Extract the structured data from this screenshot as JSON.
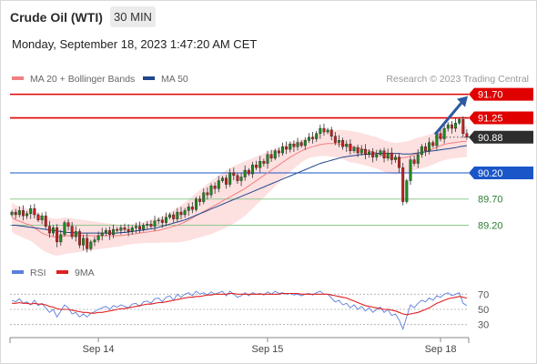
{
  "header": {
    "instrument": "Crude Oil (WTI)",
    "timeframe": "30 MIN",
    "datetime": "Monday, September 18, 2023 1:47:20 AM CET"
  },
  "source": "Research © 2023 Trading Central",
  "colors": {
    "bb_line": "#f08080",
    "bb_band": "#fde0e0",
    "ma50": "#23468c",
    "resistance": "#e00000",
    "pivot": "#1a56c8",
    "support": "#8fca8f",
    "candle_up": "#1e8a1e",
    "candle_down": "#c81e1e",
    "rsi": "#5b7fdc",
    "rsi_ma": "#e02020",
    "price_tag_dark": "#2e2e2e",
    "arrow": "#2c5aa0"
  },
  "chart_data": [
    {
      "type": "candlestick",
      "legend": [
        {
          "name": "MA 20 + Bollinger Bands",
          "color": "#f08080"
        },
        {
          "name": "MA 50",
          "color": "#23468c"
        }
      ],
      "x_ticks": [
        {
          "label": "Sep 14",
          "index": 23
        },
        {
          "label": "Sep 15",
          "index": 68
        },
        {
          "label": "Sep 18",
          "index": 114
        }
      ],
      "ylim": [
        88.6,
        91.85
      ],
      "levels": [
        {
          "label": "91.70",
          "value": 91.7,
          "kind": "resistance"
        },
        {
          "label": "91.25",
          "value": 91.25,
          "kind": "resistance"
        },
        {
          "label": "90.88",
          "value": 90.88,
          "kind": "last"
        },
        {
          "label": "90.20",
          "value": 90.2,
          "kind": "pivot"
        },
        {
          "label": "89.70",
          "value": 89.7,
          "kind": "support"
        },
        {
          "label": "89.20",
          "value": 89.2,
          "kind": "support"
        }
      ],
      "arrow": {
        "from_price": 90.9,
        "to_price": 91.7
      },
      "closes": [
        89.45,
        89.4,
        89.48,
        89.38,
        89.42,
        89.52,
        89.4,
        89.3,
        89.38,
        89.18,
        89.05,
        89.15,
        88.88,
        89.02,
        89.25,
        89.18,
        88.98,
        89.08,
        88.82,
        88.95,
        88.75,
        88.88,
        88.92,
        89.0,
        89.05,
        89.1,
        89.02,
        89.12,
        89.1,
        89.15,
        89.12,
        89.08,
        89.15,
        89.18,
        89.12,
        89.2,
        89.22,
        89.18,
        89.28,
        89.3,
        89.25,
        89.35,
        89.4,
        89.32,
        89.45,
        89.4,
        89.48,
        89.55,
        89.5,
        89.7,
        89.65,
        89.82,
        89.78,
        89.95,
        89.9,
        90.05,
        90.1,
        89.98,
        90.2,
        90.15,
        90.05,
        90.12,
        90.25,
        90.18,
        90.35,
        90.3,
        90.42,
        90.38,
        90.55,
        90.48,
        90.62,
        90.58,
        90.7,
        90.65,
        90.75,
        90.7,
        90.78,
        90.72,
        90.82,
        90.88,
        90.85,
        90.95,
        91.05,
        90.98,
        91.02,
        90.9,
        90.78,
        90.82,
        90.7,
        90.75,
        90.62,
        90.68,
        90.58,
        90.65,
        90.55,
        90.6,
        90.5,
        90.55,
        90.62,
        90.48,
        90.58,
        90.45,
        90.5,
        90.3,
        89.65,
        90.05,
        90.45,
        90.38,
        90.55,
        90.7,
        90.62,
        90.78,
        90.72,
        90.95,
        90.85,
        91.05,
        91.12,
        91.05,
        91.15,
        91.22,
        90.95,
        90.88
      ],
      "ma20": [
        89.35,
        89.3,
        89.28,
        89.25,
        89.22,
        89.2,
        89.15,
        89.1,
        89.05,
        89.02,
        89.0,
        88.98,
        88.97,
        88.98,
        89.0,
        89.0,
        89.0,
        89.0,
        89.0,
        89.0,
        89.0,
        89.0,
        89.0,
        89.0,
        89.0,
        89.0,
        89.0,
        89.0,
        89.0,
        89.0,
        89.01,
        89.02,
        89.03,
        89.04,
        89.05,
        89.06,
        89.07,
        89.08,
        89.09,
        89.1,
        89.12,
        89.14,
        89.16,
        89.18,
        89.2,
        89.23,
        89.26,
        89.3,
        89.34,
        89.38,
        89.42,
        89.46,
        89.5,
        89.54,
        89.58,
        89.62,
        89.66,
        89.7,
        89.74,
        89.78,
        89.82,
        89.86,
        89.9,
        89.95,
        90.0,
        90.05,
        90.1,
        90.15,
        90.2,
        90.25,
        90.3,
        90.35,
        90.4,
        90.45,
        90.5,
        90.54,
        90.58,
        90.62,
        90.65,
        90.68,
        90.7,
        90.72,
        90.74,
        90.75,
        90.76,
        90.76,
        90.76,
        90.75,
        90.74,
        90.72,
        90.7,
        90.69,
        90.68,
        90.66,
        90.64,
        90.62,
        90.6,
        90.58,
        90.55,
        90.52,
        90.5,
        90.48,
        90.47,
        90.48,
        90.49,
        90.5,
        90.52,
        90.55,
        90.57,
        90.59,
        90.61,
        90.63,
        90.66,
        90.69,
        90.72,
        90.74,
        90.76,
        90.77,
        90.78,
        90.79,
        90.8,
        90.8
      ],
      "bb_width": [
        0.28,
        0.28,
        0.28,
        0.29,
        0.29,
        0.3,
        0.3,
        0.31,
        0.32,
        0.33,
        0.34,
        0.35,
        0.35,
        0.35,
        0.35,
        0.34,
        0.33,
        0.32,
        0.31,
        0.3,
        0.29,
        0.28,
        0.27,
        0.26,
        0.25,
        0.24,
        0.23,
        0.22,
        0.21,
        0.2,
        0.19,
        0.19,
        0.19,
        0.19,
        0.2,
        0.2,
        0.21,
        0.22,
        0.23,
        0.24,
        0.25,
        0.27,
        0.29,
        0.31,
        0.33,
        0.35,
        0.37,
        0.39,
        0.41,
        0.43,
        0.45,
        0.47,
        0.49,
        0.51,
        0.52,
        0.53,
        0.54,
        0.55,
        0.55,
        0.55,
        0.54,
        0.53,
        0.52,
        0.5,
        0.48,
        0.46,
        0.44,
        0.42,
        0.4,
        0.38,
        0.36,
        0.34,
        0.32,
        0.3,
        0.28,
        0.26,
        0.24,
        0.22,
        0.2,
        0.2,
        0.2,
        0.21,
        0.22,
        0.23,
        0.24,
        0.25,
        0.26,
        0.27,
        0.28,
        0.29,
        0.3,
        0.3,
        0.3,
        0.3,
        0.3,
        0.3,
        0.3,
        0.3,
        0.3,
        0.3,
        0.3,
        0.3,
        0.3,
        0.3,
        0.3,
        0.3,
        0.3,
        0.3,
        0.3,
        0.3,
        0.3,
        0.3,
        0.3,
        0.3,
        0.3,
        0.3,
        0.3,
        0.3,
        0.3,
        0.3,
        0.3,
        0.3
      ],
      "ma50": [
        89.2,
        89.2,
        89.19,
        89.18,
        89.17,
        89.16,
        89.15,
        89.14,
        89.13,
        89.12,
        89.11,
        89.1,
        89.09,
        89.08,
        89.07,
        89.06,
        89.06,
        89.05,
        89.05,
        89.05,
        89.05,
        89.05,
        89.05,
        89.05,
        89.05,
        89.05,
        89.05,
        89.05,
        89.05,
        89.06,
        89.06,
        89.07,
        89.08,
        89.09,
        89.1,
        89.11,
        89.12,
        89.13,
        89.14,
        89.16,
        89.18,
        89.2,
        89.22,
        89.24,
        89.26,
        89.28,
        89.3,
        89.33,
        89.36,
        89.39,
        89.42,
        89.45,
        89.48,
        89.51,
        89.54,
        89.57,
        89.6,
        89.63,
        89.66,
        89.69,
        89.72,
        89.75,
        89.78,
        89.81,
        89.84,
        89.87,
        89.9,
        89.93,
        89.96,
        89.99,
        90.02,
        90.05,
        90.08,
        90.11,
        90.14,
        90.17,
        90.2,
        90.23,
        90.26,
        90.29,
        90.32,
        90.35,
        90.38,
        90.4,
        90.42,
        90.44,
        90.46,
        90.48,
        90.5,
        90.51,
        90.52,
        90.53,
        90.54,
        90.55,
        90.55,
        90.56,
        90.56,
        90.57,
        90.57,
        90.57,
        90.57,
        90.57,
        90.57,
        90.57,
        90.56,
        90.56,
        90.56,
        90.57,
        90.58,
        90.59,
        90.6,
        90.61,
        90.62,
        90.63,
        90.64,
        90.65,
        90.66,
        90.67,
        90.68,
        90.7,
        90.71,
        90.72
      ]
    },
    {
      "type": "line",
      "legend": [
        {
          "name": "RSI",
          "color": "#5b7fdc"
        },
        {
          "name": "9MA",
          "color": "#e02020"
        }
      ],
      "ylim": [
        20,
        80
      ],
      "y_ticks": [
        70,
        50,
        30
      ],
      "rsi": [
        62,
        60,
        64,
        58,
        60,
        56,
        62,
        55,
        58,
        52,
        46,
        50,
        40,
        48,
        56,
        52,
        44,
        46,
        40,
        44,
        40,
        45,
        47,
        50,
        52,
        54,
        50,
        55,
        53,
        56,
        54,
        52,
        57,
        58,
        54,
        60,
        61,
        58,
        64,
        65,
        60,
        66,
        68,
        62,
        70,
        66,
        70,
        72,
        68,
        74,
        70,
        72,
        69,
        73,
        70,
        72,
        74,
        68,
        74,
        70,
        66,
        68,
        72,
        68,
        72,
        70,
        71,
        69,
        73,
        70,
        74,
        71,
        72,
        70,
        71,
        69,
        70,
        68,
        70,
        71,
        69,
        72,
        74,
        70,
        70,
        65,
        60,
        62,
        56,
        58,
        52,
        56,
        50,
        54,
        48,
        52,
        46,
        50,
        53,
        46,
        50,
        42,
        44,
        36,
        24,
        40,
        56,
        52,
        58,
        62,
        60,
        65,
        62,
        68,
        66,
        70,
        72,
        68,
        70,
        72,
        58,
        55
      ],
      "ma9": [
        58,
        58,
        59,
        58,
        58,
        57,
        58,
        57,
        57,
        56,
        54,
        53,
        51,
        50,
        50,
        50,
        49,
        48,
        47,
        46,
        46,
        45,
        45,
        46,
        46,
        47,
        48,
        49,
        50,
        51,
        51,
        52,
        53,
        54,
        55,
        56,
        57,
        57,
        58,
        59,
        59,
        60,
        61,
        62,
        63,
        64,
        65,
        66,
        66,
        67,
        67,
        68,
        69,
        69,
        70,
        70,
        70,
        70,
        71,
        71,
        70,
        70,
        70,
        70,
        70,
        70,
        70,
        70,
        70,
        70,
        70,
        70,
        71,
        71,
        71,
        71,
        71,
        70,
        70,
        70,
        70,
        70,
        70,
        70,
        70,
        69,
        68,
        67,
        66,
        65,
        63,
        61,
        59,
        57,
        55,
        54,
        53,
        52,
        51,
        50,
        50,
        49,
        48,
        46,
        44,
        43,
        44,
        45,
        46,
        48,
        50,
        52,
        55,
        58,
        60,
        62,
        64,
        65,
        66,
        67,
        66,
        65
      ]
    }
  ]
}
